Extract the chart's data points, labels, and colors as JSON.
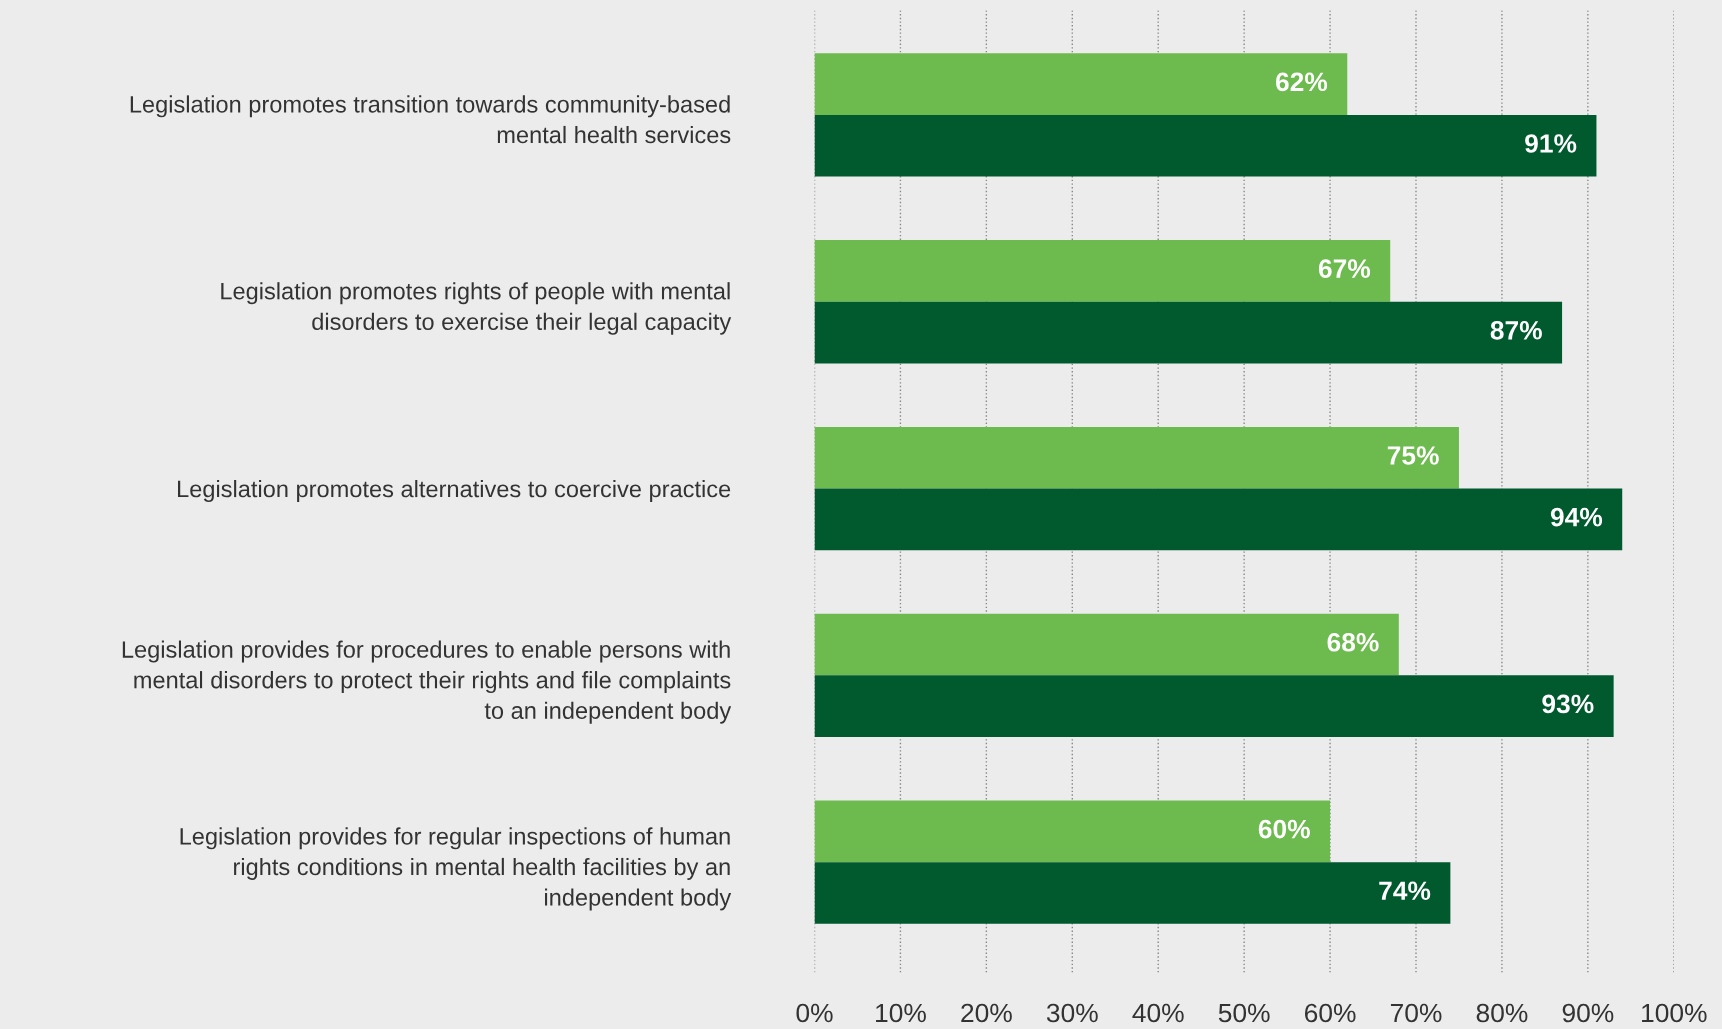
{
  "chart_data": {
    "type": "bar",
    "orientation": "horizontal",
    "categories": [
      "Legislation promotes transition towards community-based\nmental health services",
      "Legislation promotes rights of people with mental\ndisorders to exercise their legal capacity",
      "Legislation promotes alternatives to coercive practice",
      "Legislation provides for procedures to enable persons with\nmental disorders to protect their rights and file complaints\nto an independent body",
      "Legislation provides for regular inspections of human\nrights conditions in mental health facilities by an\nindependent body"
    ],
    "series": [
      {
        "color": "#6dbb4f",
        "values": [
          62,
          67,
          75,
          68,
          60
        ],
        "value_labels": [
          "62%",
          "67%",
          "75%",
          "68%",
          "60%"
        ]
      },
      {
        "color": "#005a2e",
        "values": [
          91,
          87,
          94,
          93,
          74
        ],
        "value_labels": [
          "91%",
          "87%",
          "94%",
          "93%",
          "74%"
        ]
      }
    ],
    "xlim": [
      0,
      100
    ],
    "xticks": [
      {
        "value": 0,
        "label": "0%"
      },
      {
        "value": 10,
        "label": "10%"
      },
      {
        "value": 20,
        "label": "20%"
      },
      {
        "value": 30,
        "label": "30%"
      },
      {
        "value": 40,
        "label": "40%"
      },
      {
        "value": 50,
        "label": "50%"
      },
      {
        "value": 60,
        "label": "60%"
      },
      {
        "value": 70,
        "label": "70%"
      },
      {
        "value": 80,
        "label": "80%"
      },
      {
        "value": 90,
        "label": "90%"
      },
      {
        "value": 100,
        "label": "100%"
      }
    ],
    "grid": "x",
    "legend": false
  }
}
